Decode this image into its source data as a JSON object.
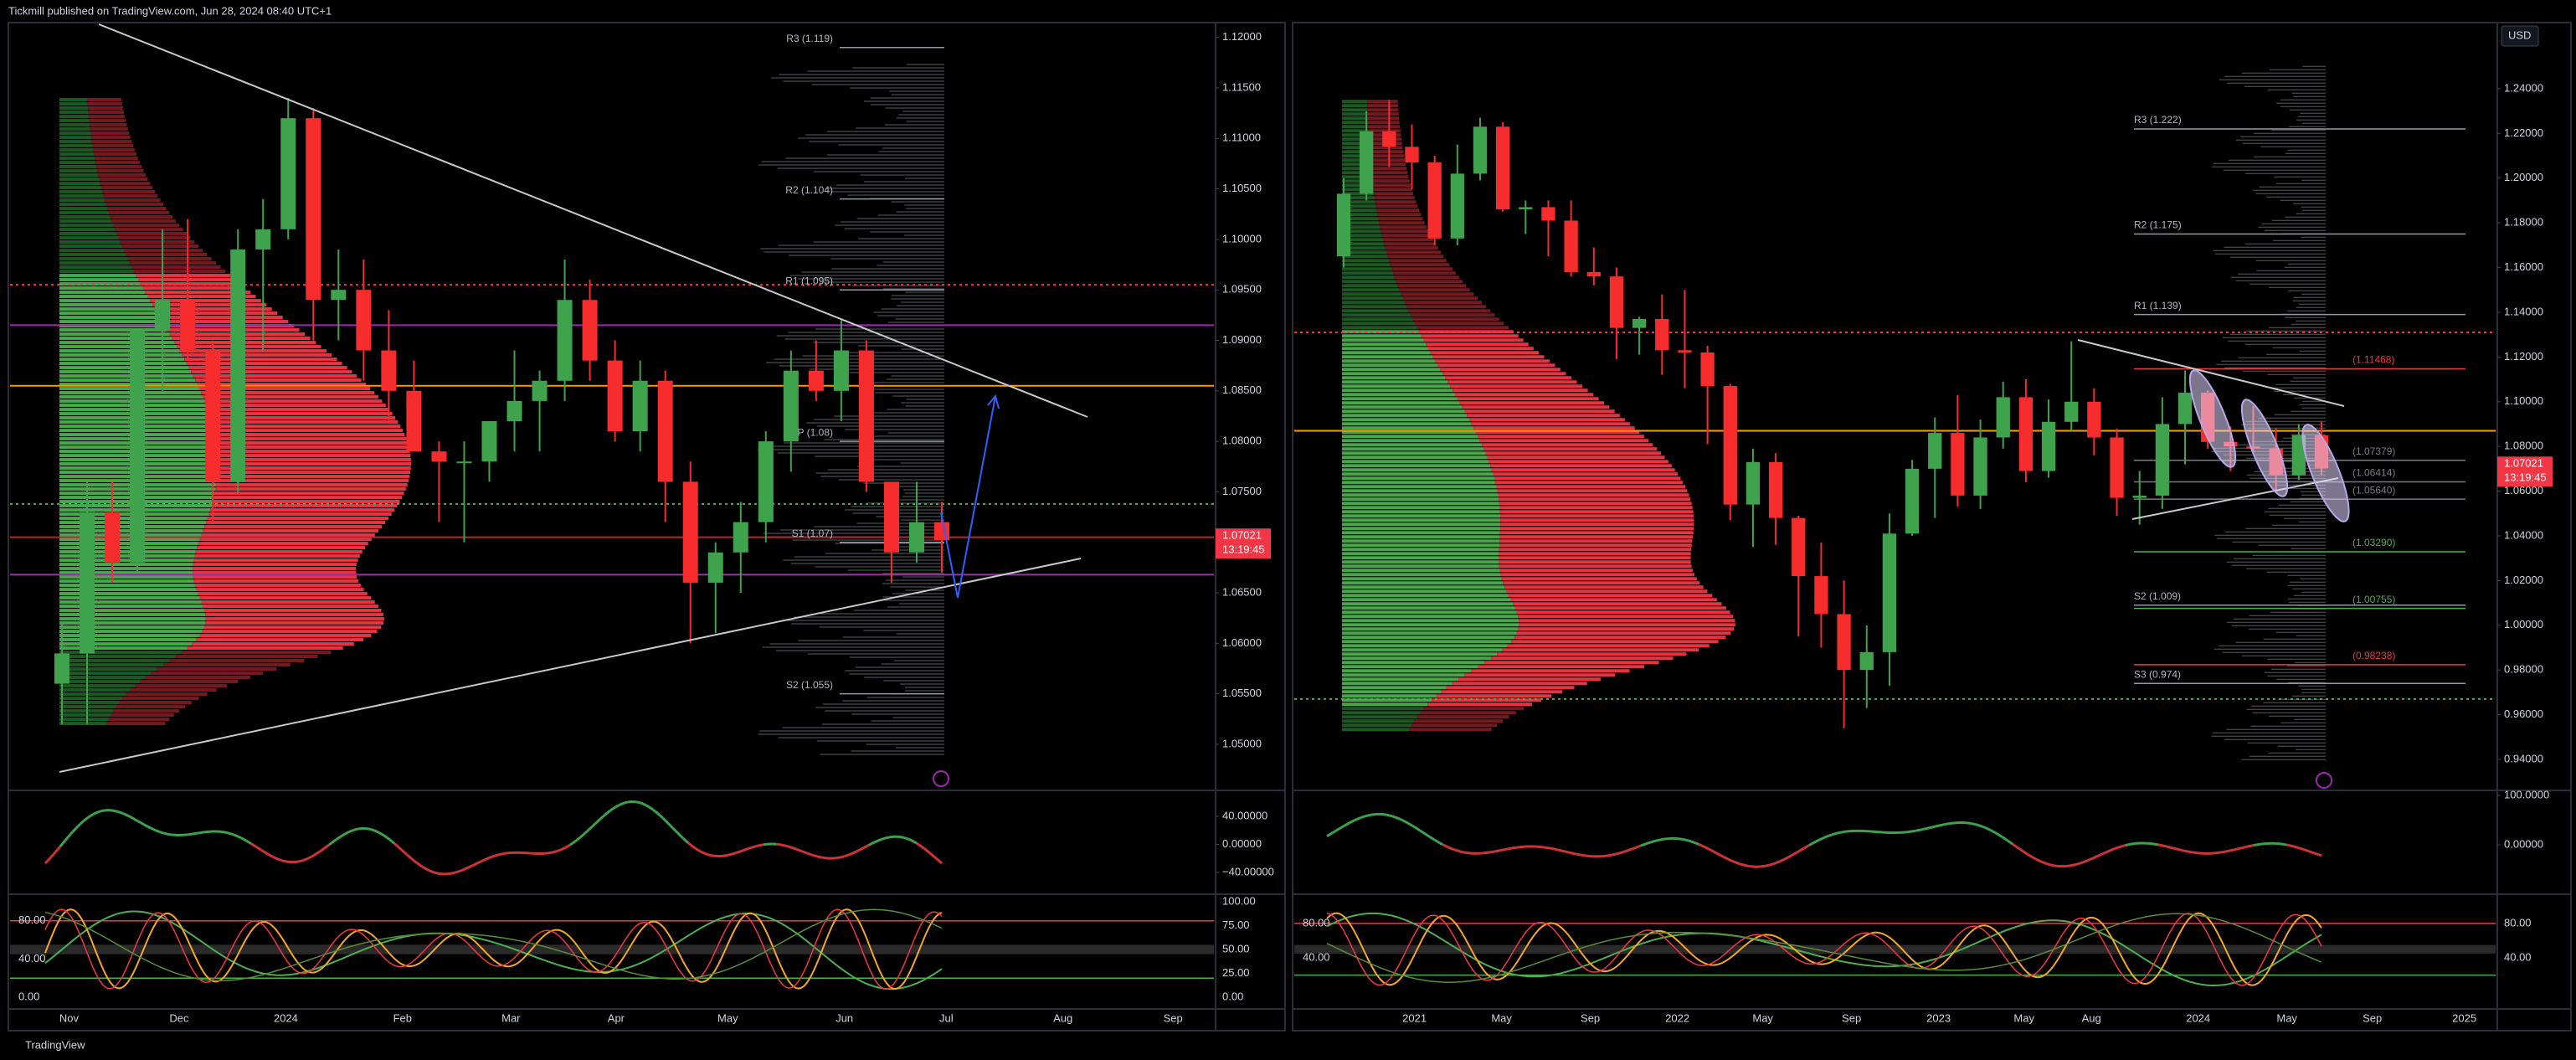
{
  "header": {
    "publisher": "Tickmill published on TradingView.com, Jun 28, 2024 08:40 UTC+1"
  },
  "footer": {
    "brand": "TradingView"
  },
  "currency": "USD",
  "chart_data": [
    {
      "type": "candlestick",
      "categories": [
        "Nov",
        "Dec",
        "2024",
        "Feb",
        "Mar",
        "Apr",
        "May",
        "Jun",
        "Jul",
        "Aug",
        "Sep"
      ],
      "up_color": "#3fa34d",
      "down_color": "#f72c2c",
      "open": [
        1.056,
        1.059,
        1.073,
        1.068,
        1.091,
        1.094,
        1.089,
        1.076,
        1.099,
        1.101,
        1.112,
        1.094,
        1.095,
        1.089,
        1.085,
        1.079,
        1.078,
        1.078,
        1.082,
        1.084,
        1.086,
        1.094,
        1.088,
        1.081,
        1.086,
        1.076,
        1.066,
        1.069,
        1.072,
        1.08,
        1.087,
        1.085,
        1.089,
        1.076,
        1.069,
        1.072
      ],
      "high": [
        1.062,
        1.076,
        1.076,
        1.091,
        1.101,
        1.102,
        1.09,
        1.101,
        1.104,
        1.114,
        1.113,
        1.099,
        1.098,
        1.093,
        1.088,
        1.08,
        1.08,
        1.082,
        1.089,
        1.087,
        1.098,
        1.096,
        1.09,
        1.088,
        1.087,
        1.078,
        1.07,
        1.074,
        1.081,
        1.089,
        1.09,
        1.092,
        1.09,
        1.076,
        1.076,
        1.074
      ],
      "low": [
        1.052,
        1.052,
        1.066,
        1.067,
        1.085,
        1.088,
        1.072,
        1.075,
        1.089,
        1.1,
        1.09,
        1.09,
        1.086,
        1.082,
        1.079,
        1.072,
        1.07,
        1.076,
        1.079,
        1.079,
        1.084,
        1.086,
        1.08,
        1.079,
        1.072,
        1.06,
        1.061,
        1.065,
        1.07,
        1.077,
        1.084,
        1.082,
        1.075,
        1.066,
        1.068,
        1.067
      ],
      "close": [
        1.059,
        1.073,
        1.068,
        1.091,
        1.094,
        1.089,
        1.076,
        1.099,
        1.101,
        1.112,
        1.094,
        1.095,
        1.089,
        1.085,
        1.079,
        1.078,
        1.078,
        1.082,
        1.084,
        1.086,
        1.094,
        1.088,
        1.081,
        1.086,
        1.076,
        1.066,
        1.069,
        1.072,
        1.08,
        1.087,
        1.085,
        1.089,
        1.076,
        1.069,
        1.072,
        1.07021
      ],
      "ylim": [
        1.0456,
        1.1213
      ],
      "yticks": [
        {
          "value": 1.12,
          "label": "1.12000"
        },
        {
          "value": 1.115,
          "label": "1.11500"
        },
        {
          "value": 1.11,
          "label": "1.11000"
        },
        {
          "value": 1.105,
          "label": "1.10500"
        },
        {
          "value": 1.1,
          "label": "1.10000"
        },
        {
          "value": 1.095,
          "label": "1.09500"
        },
        {
          "value": 1.09,
          "label": "1.09000"
        },
        {
          "value": 1.085,
          "label": "1.08500"
        },
        {
          "value": 1.08,
          "label": "1.08000"
        },
        {
          "value": 1.075,
          "label": "1.07500"
        },
        {
          "value": 1.07,
          "label": "1.07000"
        },
        {
          "value": 1.065,
          "label": "1.06500"
        },
        {
          "value": 1.06,
          "label": "1.06000"
        },
        {
          "value": 1.055,
          "label": "1.05500"
        },
        {
          "value": 1.05,
          "label": "1.05000"
        }
      ],
      "last_price": 1.07021,
      "countdown": "13:19:45",
      "levels": [
        {
          "label": "R3 (1.119)",
          "value": 1.119
        },
        {
          "label": "R2 (1.104)",
          "value": 1.104
        },
        {
          "label": "R1 (1.095)",
          "value": 1.095
        },
        {
          "label": "P (1.08)",
          "value": 1.08
        },
        {
          "label": "S1 (1.07)",
          "value": 1.07
        },
        {
          "label": "S2 (1.055)",
          "value": 1.055
        }
      ],
      "hlines": [
        {
          "value": 1.0955,
          "color": "#f23645",
          "style": "dotted"
        },
        {
          "value": 1.0915,
          "color": "#9c27b0",
          "style": "solid"
        },
        {
          "value": 1.0855,
          "color": "#ff9800",
          "style": "solid"
        },
        {
          "value": 1.0738,
          "color": "#4caf50",
          "style": "dotted"
        },
        {
          "value": 1.0705,
          "color": "#b22833",
          "style": "solid"
        },
        {
          "value": 1.0668,
          "color": "#9c27b0",
          "style": "solid"
        }
      ],
      "osc_lim": [
        -68.7,
        74.6
      ],
      "osc_ticks": [
        {
          "value": 40,
          "label": "40.00000"
        },
        {
          "value": 0,
          "label": "0.00000"
        },
        {
          "value": -40,
          "label": "−40.00000"
        }
      ],
      "stoch_lim": [
        -10.5,
        106.1
      ],
      "stoch_ticks_right": [
        {
          "value": 100,
          "label": "100.00"
        },
        {
          "value": 75,
          "label": "75.00"
        },
        {
          "value": 50,
          "label": "50.00"
        },
        {
          "value": 25,
          "label": "25.00"
        },
        {
          "value": 0,
          "label": "0.00"
        }
      ],
      "stoch_ticks_left": [
        {
          "value": 80,
          "label": "80.00"
        },
        {
          "value": 40,
          "label": "40.00"
        },
        {
          "value": 0,
          "label": "0.00"
        }
      ],
      "stoch_levels": [
        {
          "value": 80,
          "color": "#f23645"
        },
        {
          "value": 20,
          "color": "#4caf50"
        }
      ]
    },
    {
      "type": "candlestick",
      "categories": [
        "2021",
        "May",
        "Sep",
        "2022",
        "May",
        "Sep",
        "2023",
        "May",
        "Aug",
        "2024",
        "May",
        "Sep",
        "2025"
      ],
      "up_color": "#3fa34d",
      "down_color": "#f72c2c",
      "open": [
        1.165,
        1.193,
        1.221,
        1.214,
        1.207,
        1.173,
        1.202,
        1.223,
        1.186,
        1.187,
        1.181,
        1.158,
        1.156,
        1.133,
        1.137,
        1.123,
        1.122,
        1.107,
        1.054,
        1.073,
        1.048,
        1.022,
        1.005,
        0.98,
        0.988,
        1.041,
        1.07,
        1.086,
        1.058,
        1.084,
        1.102,
        1.069,
        1.091,
        1.1,
        1.084,
        1.057,
        1.058,
        1.09,
        1.104,
        1.082,
        1.08,
        1.079,
        1.067,
        1.085
      ],
      "high": [
        1.2,
        1.23,
        1.235,
        1.224,
        1.21,
        1.215,
        1.227,
        1.225,
        1.19,
        1.19,
        1.19,
        1.169,
        1.16,
        1.138,
        1.148,
        1.15,
        1.125,
        1.108,
        1.079,
        1.077,
        1.049,
        1.037,
        1.02,
        1.0,
        1.05,
        1.074,
        1.093,
        1.103,
        1.092,
        1.109,
        1.11,
        1.101,
        1.127,
        1.106,
        1.088,
        1.069,
        1.102,
        1.114,
        1.105,
        1.089,
        1.098,
        1.088,
        1.09,
        1.091
      ],
      "low": [
        1.16,
        1.19,
        1.205,
        1.195,
        1.17,
        1.17,
        1.199,
        1.185,
        1.175,
        1.165,
        1.156,
        1.152,
        1.119,
        1.121,
        1.112,
        1.106,
        1.081,
        1.047,
        1.035,
        1.036,
        0.995,
        0.99,
        0.954,
        0.963,
        0.973,
        1.04,
        1.048,
        1.053,
        1.052,
        1.079,
        1.064,
        1.066,
        1.087,
        1.076,
        1.049,
        1.045,
        1.052,
        1.072,
        1.079,
        1.069,
        1.077,
        1.06,
        1.065,
        1.067
      ],
      "close": [
        1.193,
        1.221,
        1.214,
        1.207,
        1.173,
        1.202,
        1.223,
        1.186,
        1.187,
        1.181,
        1.158,
        1.156,
        1.133,
        1.137,
        1.123,
        1.122,
        1.107,
        1.054,
        1.073,
        1.048,
        1.022,
        1.005,
        0.98,
        0.988,
        1.041,
        1.07,
        1.086,
        1.058,
        1.084,
        1.102,
        1.069,
        1.091,
        1.1,
        1.084,
        1.057,
        1.058,
        1.09,
        1.104,
        1.082,
        1.08,
        1.079,
        1.067,
        1.085,
        1.07021
      ],
      "ylim": [
        0.9269,
        1.2688
      ],
      "yticks": [
        {
          "value": 1.24,
          "label": "1.24000"
        },
        {
          "value": 1.22,
          "label": "1.22000"
        },
        {
          "value": 1.2,
          "label": "1.20000"
        },
        {
          "value": 1.18,
          "label": "1.18000"
        },
        {
          "value": 1.16,
          "label": "1.16000"
        },
        {
          "value": 1.14,
          "label": "1.14000"
        },
        {
          "value": 1.12,
          "label": "1.12000"
        },
        {
          "value": 1.1,
          "label": "1.10000"
        },
        {
          "value": 1.08,
          "label": "1.08000"
        },
        {
          "value": 1.06,
          "label": "1.06000"
        },
        {
          "value": 1.04,
          "label": "1.04000"
        },
        {
          "value": 1.02,
          "label": "1.02000"
        },
        {
          "value": 1,
          "label": "1.00000"
        },
        {
          "value": 0.98,
          "label": "0.98000"
        },
        {
          "value": 0.96,
          "label": "0.96000"
        },
        {
          "value": 0.94,
          "label": "0.94000"
        }
      ],
      "last_price": 1.07021,
      "countdown": "13:19:45",
      "levels": [
        {
          "label": "R3 (1.222)",
          "value": 1.222
        },
        {
          "label": "R2 (1.175)",
          "value": 1.175
        },
        {
          "label": "R1 (1.139)",
          "value": 1.139
        },
        {
          "label": "(1.11468)",
          "value": 1.11468,
          "color": "#f23645"
        },
        {
          "label": "(1.07379)",
          "value": 1.07379,
          "color": "#787b86"
        },
        {
          "label": "(1.06414)",
          "value": 1.06414,
          "color": "#787b86"
        },
        {
          "label": "(1.05640)",
          "value": 1.0564,
          "color": "#787b86"
        },
        {
          "label": "(1.03290)",
          "value": 1.0329,
          "color": "#4caf50"
        },
        {
          "label": "S2 (1.009)",
          "value": 1.009
        },
        {
          "label": "(1.00755)",
          "value": 1.00755,
          "color": "#4caf50"
        },
        {
          "label": "(0.98238)",
          "value": 0.98238,
          "color": "#f23645"
        },
        {
          "label": "S3 (0.974)",
          "value": 0.974
        }
      ],
      "hlines": [
        {
          "value": 1.131,
          "color": "#f23645",
          "style": "dotted"
        },
        {
          "value": 1.087,
          "color": "#ff9800",
          "style": "solid"
        },
        {
          "value": 0.967,
          "color": "#4caf50",
          "style": "dotted"
        }
      ],
      "osc_lim": [
        -96.6,
        106.8
      ],
      "osc_ticks": [
        {
          "value": 100,
          "label": "100.0000"
        },
        {
          "value": 0,
          "label": "0.00000"
        }
      ],
      "stoch_lim": [
        -17.3,
        112
      ],
      "stoch_ticks_right": [
        {
          "value": 80,
          "label": "80.00"
        },
        {
          "value": 40,
          "label": "40.00"
        }
      ],
      "stoch_ticks_left": [
        {
          "value": 80,
          "label": "80.00"
        },
        {
          "value": 40,
          "label": "40.00"
        }
      ],
      "stoch_levels": [
        {
          "value": 80,
          "color": "#f23645"
        },
        {
          "value": 20,
          "color": "#4caf50"
        }
      ]
    }
  ]
}
